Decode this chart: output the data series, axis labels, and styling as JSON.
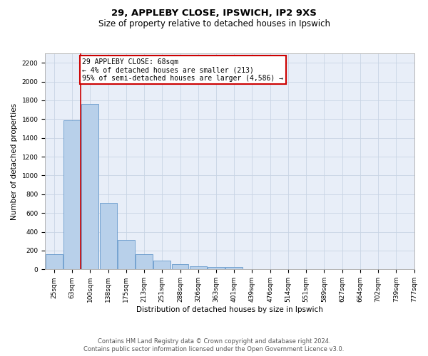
{
  "title_line1": "29, APPLEBY CLOSE, IPSWICH, IP2 9XS",
  "title_line2": "Size of property relative to detached houses in Ipswich",
  "xlabel": "Distribution of detached houses by size in Ipswich",
  "ylabel": "Number of detached properties",
  "bar_values": [
    160,
    1590,
    1760,
    710,
    315,
    160,
    90,
    55,
    35,
    25,
    25,
    0,
    0,
    0,
    0,
    0,
    0,
    0,
    0,
    0
  ],
  "bin_labels": [
    "25sqm",
    "63sqm",
    "100sqm",
    "138sqm",
    "175sqm",
    "213sqm",
    "251sqm",
    "288sqm",
    "326sqm",
    "363sqm",
    "401sqm",
    "439sqm",
    "476sqm",
    "514sqm",
    "551sqm",
    "589sqm",
    "627sqm",
    "664sqm",
    "702sqm",
    "739sqm",
    "777sqm"
  ],
  "bar_color": "#b8d0ea",
  "bar_edge_color": "#6699cc",
  "subject_vline_x": 1.475,
  "annotation_text": "29 APPLEBY CLOSE: 68sqm\n← 4% of detached houses are smaller (213)\n95% of semi-detached houses are larger (4,586) →",
  "annotation_box_color": "#ffffff",
  "annotation_box_edge_color": "#cc0000",
  "subject_vline_color": "#cc0000",
  "ylim": [
    0,
    2300
  ],
  "yticks": [
    0,
    200,
    400,
    600,
    800,
    1000,
    1200,
    1400,
    1600,
    1800,
    2000,
    2200
  ],
  "grid_color": "#c8d4e4",
  "bg_color": "#e8eef8",
  "footer_line1": "Contains HM Land Registry data © Crown copyright and database right 2024.",
  "footer_line2": "Contains public sector information licensed under the Open Government Licence v3.0.",
  "title_fontsize": 9.5,
  "subtitle_fontsize": 8.5,
  "label_fontsize": 7.5,
  "tick_fontsize": 6.5,
  "annot_fontsize": 7,
  "footer_fontsize": 6
}
